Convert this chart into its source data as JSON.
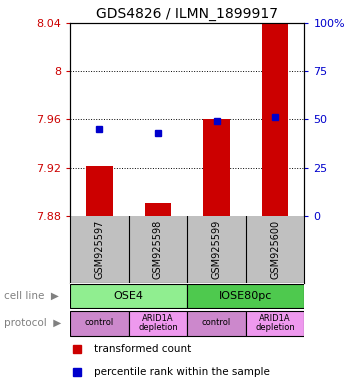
{
  "title": "GDS4826 / ILMN_1899917",
  "samples": [
    "GSM925597",
    "GSM925598",
    "GSM925599",
    "GSM925600"
  ],
  "bar_values": [
    7.921,
    7.891,
    7.96,
    8.04
  ],
  "bar_bottom": 7.88,
  "blue_values": [
    45,
    43,
    49,
    51
  ],
  "ylim": [
    7.88,
    8.04
  ],
  "yticks": [
    7.88,
    7.92,
    7.96,
    8.0,
    8.04
  ],
  "ytick_labels": [
    "7.88",
    "7.92",
    "7.96",
    "8",
    "8.04"
  ],
  "right_yticks": [
    0,
    25,
    50,
    75,
    100
  ],
  "right_ytick_labels": [
    "0",
    "25",
    "50",
    "75",
    "100%"
  ],
  "cell_line_groups": [
    {
      "label": "OSE4",
      "cols": [
        0,
        1
      ],
      "color": "#90EE90"
    },
    {
      "label": "IOSE80pc",
      "cols": [
        2,
        3
      ],
      "color": "#4EC94E"
    }
  ],
  "protocol_labels": [
    "control",
    "ARID1A\ndepletion",
    "control",
    "ARID1A\ndepletion"
  ],
  "protocol_colors": [
    "#CC88CC",
    "#EE99EE",
    "#CC88CC",
    "#EE99EE"
  ],
  "bar_color": "#CC0000",
  "blue_color": "#0000CC",
  "bar_width": 0.45,
  "blue_marker_size": 5,
  "legend_items": [
    {
      "color": "#CC0000",
      "label": "transformed count"
    },
    {
      "color": "#0000CC",
      "label": "percentile rank within the sample"
    }
  ],
  "cell_line_label": "cell line",
  "protocol_label": "protocol",
  "bg_color": "#FFFFFF",
  "sample_box_color": "#C0C0C0"
}
